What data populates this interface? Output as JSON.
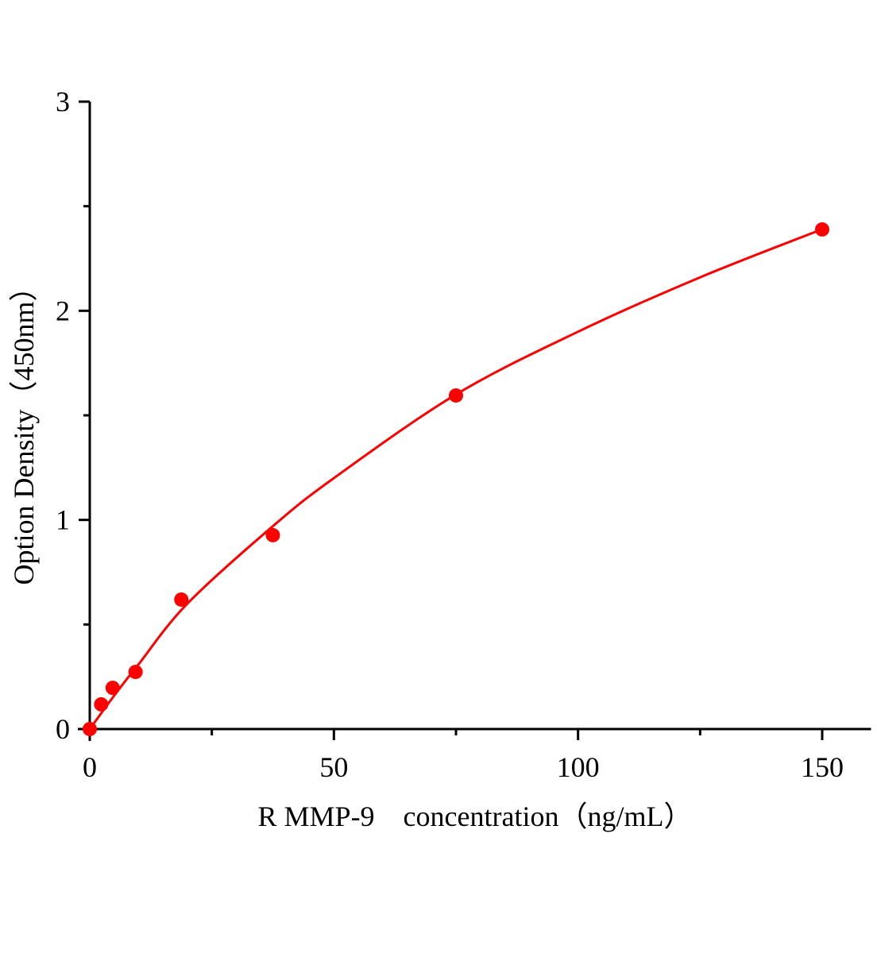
{
  "chart_data": {
    "type": "scatter",
    "title": "",
    "xlabel": "R MMP-9　concentration（ng/mL）",
    "ylabel": "Option Density（450nm）",
    "xlim": [
      0,
      160
    ],
    "ylim": [
      0,
      3
    ],
    "x_ticks": [
      0,
      50,
      100,
      150
    ],
    "x_tick_labels": [
      "0",
      "50",
      "100",
      "150"
    ],
    "x_minor_ticks": [
      25,
      75,
      125
    ],
    "y_ticks": [
      0,
      1,
      2,
      3
    ],
    "y_tick_labels": [
      "0",
      "1",
      "2",
      "3"
    ],
    "y_minor_ticks": [
      0.5,
      1.5,
      2.5
    ],
    "grid": false,
    "legend": "none",
    "color": "#ff0000",
    "series": [
      {
        "x": [
          0,
          2.34,
          4.69,
          9.375,
          18.75,
          37.5,
          75,
          150
        ],
        "y": [
          0.0,
          0.118,
          0.197,
          0.273,
          0.619,
          0.927,
          1.595,
          2.389
        ]
      }
    ],
    "fit_curve": {
      "x": [
        0,
        5,
        10,
        20,
        37.5,
        50,
        75,
        100,
        125,
        150
      ],
      "y": [
        0,
        0.16,
        0.31,
        0.6,
        0.97,
        1.2,
        1.6,
        1.9,
        2.16,
        2.39
      ]
    }
  }
}
